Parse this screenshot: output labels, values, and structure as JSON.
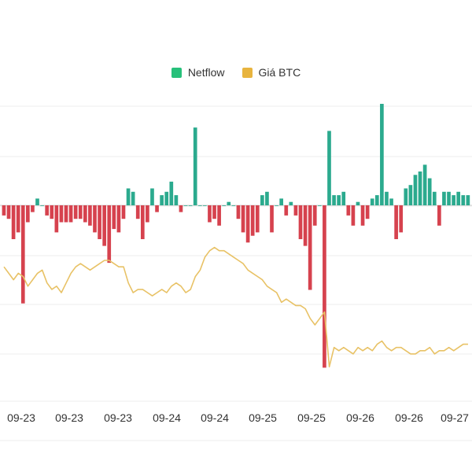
{
  "legend": {
    "netflow": "Netflow",
    "price": "Giá BTC"
  },
  "colors": {
    "inflow": "#2BAA8E",
    "outflow": "#D6424E",
    "price": "#E8C266",
    "legend_netflow": "#27C07A",
    "legend_price": "#E8B43E",
    "grid": "#ECECEC"
  },
  "chart_data": {
    "type": "bar+line",
    "x_tick_labels": [
      "09-23",
      "09-23",
      "09-23",
      "09-24",
      "09-24",
      "09-25",
      "09-25",
      "09-26",
      "09-26",
      "09-27"
    ],
    "series": [
      {
        "name": "Netflow",
        "type": "bar",
        "values": [
          -3,
          -4,
          -10,
          -8,
          -29,
          -5,
          -2,
          2,
          0,
          -3,
          -4,
          -8,
          -5,
          -5,
          -5,
          -4,
          -4,
          -5,
          -6,
          -8,
          -10,
          -12,
          -17,
          -7,
          -8,
          -4,
          5,
          4,
          -4,
          -10,
          -5,
          5,
          -2,
          3,
          4,
          7,
          3,
          -2,
          0,
          0,
          23,
          0,
          0,
          -5,
          -4,
          -6,
          0,
          1,
          0,
          -4,
          -8,
          -11,
          -9,
          -8,
          3,
          4,
          -8,
          0,
          2,
          -3,
          1,
          -3,
          -10,
          -12,
          -25,
          -6,
          0,
          -48,
          22,
          3,
          3,
          4,
          -3,
          -6,
          1,
          -6,
          -4,
          2,
          3,
          30,
          4,
          2,
          -10,
          -8,
          5,
          6,
          9,
          10,
          12,
          8,
          4,
          -6,
          4,
          4,
          3,
          4,
          3,
          3
        ]
      },
      {
        "name": "Giá BTC",
        "type": "line",
        "values": [
          -2,
          -4,
          -6,
          -4,
          -5,
          -8,
          -6,
          -4,
          -3,
          -7,
          -9,
          -8,
          -10,
          -7,
          -4,
          -2,
          -1,
          -2,
          -3,
          -2,
          -1,
          0,
          0,
          -1,
          -2,
          -2,
          -7,
          -10,
          -9,
          -9,
          -10,
          -11,
          -10,
          -9,
          -10,
          -8,
          -7,
          -8,
          -10,
          -9,
          -5,
          -3,
          1,
          3,
          4,
          3,
          3,
          2,
          1,
          0,
          -1,
          -3,
          -4,
          -5,
          -6,
          -8,
          -9,
          -10,
          -13,
          -12,
          -13,
          -14,
          -14,
          -15,
          -18,
          -20,
          -18,
          -16,
          -33,
          -27,
          -28,
          -27,
          -28,
          -29,
          -27,
          -28,
          -27,
          -28,
          -26,
          -25,
          -27,
          -28,
          -27,
          -27,
          -28,
          -29,
          -29,
          -28,
          -28,
          -27,
          -29,
          -28,
          -28,
          -27,
          -28,
          -27,
          -26,
          -26
        ]
      }
    ],
    "y_unit": "relative (no printed axis)",
    "grid": true,
    "legend_position": "top-center"
  }
}
